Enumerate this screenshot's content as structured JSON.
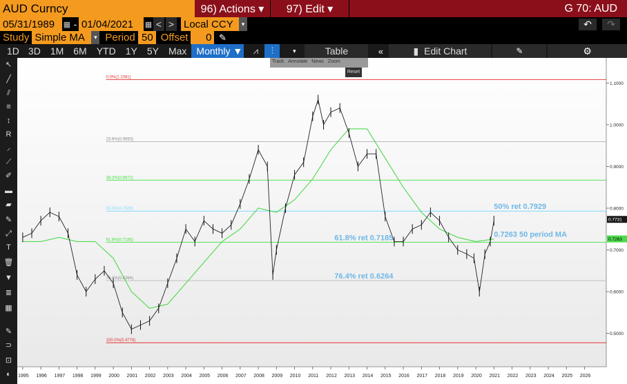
{
  "header": {
    "security": "AUD Curncy",
    "actions_menu": "96) Actions ▾",
    "edit_menu": "97) Edit ▾",
    "page_code": "G 70: AUD"
  },
  "range": {
    "start_date": "05/31/1989",
    "separator": "-",
    "end_date": "01/04/2021",
    "currency": "Local CCY"
  },
  "study": {
    "study_label": "Study",
    "study_value": "Simple MA",
    "period_label": "Period",
    "period_value": "50",
    "offset_label": "Offset",
    "offset_value": "0"
  },
  "periods": [
    "1D",
    "3D",
    "1M",
    "6M",
    "YTD",
    "1Y",
    "5Y",
    "Max"
  ],
  "frequency": "Monthly ▼",
  "table_label": "Table",
  "edit_chart_label": "Edit Chart",
  "popup": {
    "items": [
      "Track",
      "Annotate",
      "News",
      "Zoom"
    ],
    "reset": "Reset"
  },
  "colors": {
    "accent": "#f39a1f",
    "header_red": "#8b0f1a",
    "ma_line": "#4cd94c",
    "fib_red": "#e23030",
    "fib_green": "#40e040",
    "fib_cyan": "#7fdcff",
    "annotation": "#6fb7e6"
  },
  "chart_data": {
    "type": "line",
    "subtype": "ohlc-bars-with-moving-average",
    "x_ticks": [
      "1995",
      "1996",
      "1997",
      "1998",
      "1999",
      "2000",
      "2001",
      "2002",
      "2003",
      "2004",
      "2005",
      "2006",
      "2007",
      "2008",
      "2009",
      "2010",
      "2011",
      "2012",
      "2013",
      "2014",
      "2015",
      "2016",
      "2017",
      "2018",
      "2019",
      "2020",
      "2021",
      "2022",
      "2023",
      "2024",
      "2025",
      "2026"
    ],
    "y_ticks": [
      "1.1000",
      "1.0000",
      "0.9000",
      "0.8000",
      "0.7000",
      "0.6000",
      "0.5000"
    ],
    "y_range": [
      0.42,
      1.16
    ],
    "x_range": [
      1994.7,
      2027.2
    ],
    "grid": false,
    "last_price_label": "0.7731",
    "ma_label": "0.7263",
    "price_series": {
      "name": "AUD Curncy",
      "x": [
        1995.0,
        1995.5,
        1996.0,
        1996.5,
        1997.0,
        1997.5,
        1998.0,
        1998.5,
        1999.0,
        1999.5,
        2000.0,
        2000.5,
        2001.0,
        2001.5,
        2002.0,
        2002.5,
        2003.0,
        2003.5,
        2004.0,
        2004.5,
        2005.0,
        2005.5,
        2006.0,
        2006.5,
        2007.0,
        2007.5,
        2008.0,
        2008.5,
        2008.8,
        2009.0,
        2009.5,
        2010.0,
        2010.5,
        2011.0,
        2011.3,
        2011.6,
        2012.0,
        2012.5,
        2013.0,
        2013.5,
        2014.0,
        2014.5,
        2015.0,
        2015.5,
        2016.0,
        2016.5,
        2017.0,
        2017.5,
        2018.0,
        2018.5,
        2019.0,
        2019.5,
        2019.9,
        2020.2,
        2020.5,
        2020.8,
        2021.0
      ],
      "y": [
        0.73,
        0.74,
        0.77,
        0.79,
        0.78,
        0.74,
        0.64,
        0.6,
        0.63,
        0.65,
        0.62,
        0.55,
        0.51,
        0.52,
        0.53,
        0.56,
        0.62,
        0.68,
        0.75,
        0.72,
        0.77,
        0.75,
        0.74,
        0.76,
        0.81,
        0.87,
        0.94,
        0.9,
        0.64,
        0.7,
        0.8,
        0.88,
        0.91,
        1.02,
        1.06,
        1.0,
        1.03,
        1.04,
        0.98,
        0.9,
        0.93,
        0.93,
        0.78,
        0.72,
        0.72,
        0.75,
        0.76,
        0.79,
        0.77,
        0.73,
        0.7,
        0.69,
        0.68,
        0.6,
        0.69,
        0.72,
        0.77
      ]
    },
    "ma_series": {
      "name": "50 period MA",
      "x": [
        1995.0,
        1996.0,
        1997.0,
        1998.0,
        1999.0,
        2000.0,
        2001.0,
        2002.0,
        2003.0,
        2004.0,
        2005.0,
        2006.0,
        2007.0,
        2008.0,
        2009.0,
        2010.0,
        2011.0,
        2012.0,
        2013.0,
        2014.0,
        2015.0,
        2016.0,
        2017.0,
        2018.0,
        2019.0,
        2020.0,
        2021.0
      ],
      "y": [
        0.72,
        0.72,
        0.73,
        0.72,
        0.72,
        0.68,
        0.6,
        0.56,
        0.57,
        0.62,
        0.67,
        0.72,
        0.75,
        0.8,
        0.79,
        0.82,
        0.87,
        0.94,
        0.99,
        0.99,
        0.92,
        0.85,
        0.79,
        0.75,
        0.73,
        0.72,
        0.726
      ]
    },
    "fib_levels": [
      {
        "label": "0.0%(1.1081)",
        "value": 1.1081,
        "color": "#e23030"
      },
      {
        "label": "23.6%(0.9593)",
        "value": 0.9593,
        "color": "#b8b8b8"
      },
      {
        "label": "38.2%(0.8672)",
        "value": 0.8672,
        "color": "#40e040"
      },
      {
        "label": "50.0%(0.7929)",
        "value": 0.7929,
        "color": "#7fdcff"
      },
      {
        "label": "61.8%(0.7185)",
        "value": 0.7185,
        "color": "#40e040"
      },
      {
        "label": "76.4%(0.6264)",
        "value": 0.6264,
        "color": "#b8b8b8"
      },
      {
        "label": "100.0%(0.4776)",
        "value": 0.4776,
        "color": "#e23030"
      }
    ],
    "annotations": [
      {
        "text": "50% ret 0.7929",
        "x": 2021.0,
        "y": 0.7929
      },
      {
        "text": "0.7263 50 period MA",
        "x": 2021.0,
        "y": 0.7263
      },
      {
        "text": "61.8% ret 0.7185",
        "x": 2012.2,
        "y": 0.7185
      },
      {
        "text": "76.4% ret 0.6264",
        "x": 2012.2,
        "y": 0.6264
      }
    ]
  }
}
